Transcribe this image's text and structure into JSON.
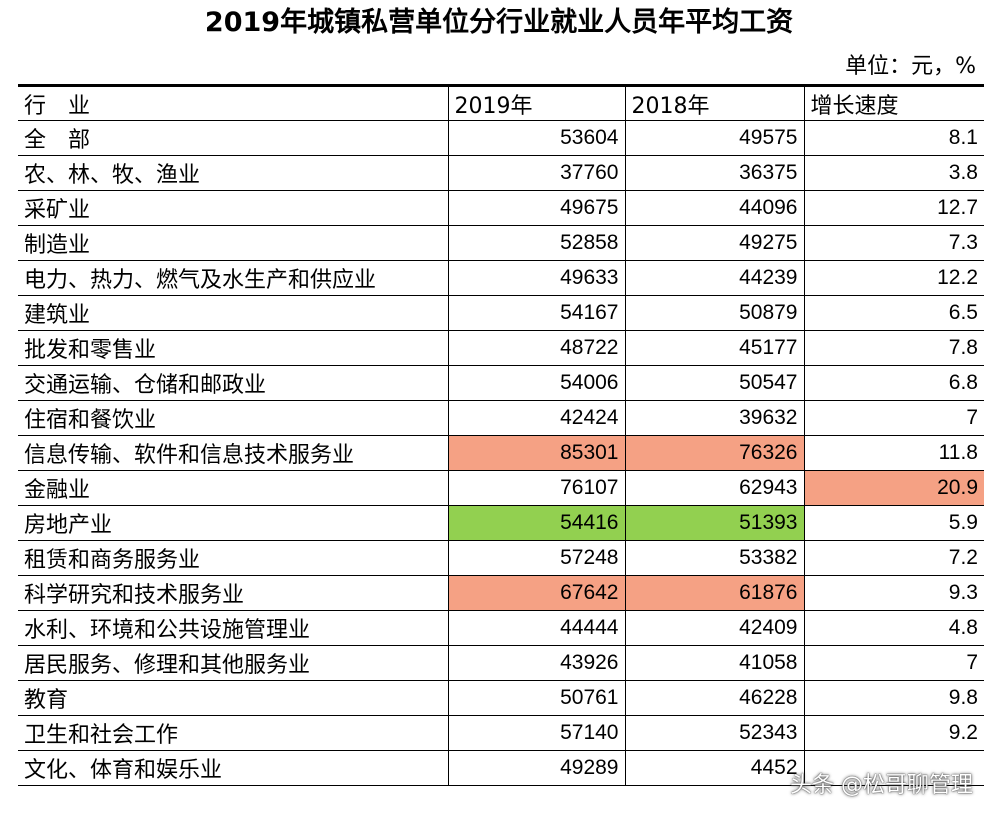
{
  "title": "2019年城镇私营单位分行业就业人员年平均工资",
  "unit": "单位：元，%",
  "headers": [
    "行　业",
    "2019年",
    "2018年",
    "增长速度"
  ],
  "rows": [
    {
      "name": "全　部",
      "y2019": "53604",
      "y2018": "49575",
      "growth": "8.1"
    },
    {
      "name": "农、林、牧、渔业",
      "y2019": "37760",
      "y2018": "36375",
      "growth": "3.8"
    },
    {
      "name": "采矿业",
      "y2019": "49675",
      "y2018": "44096",
      "growth": "12.7"
    },
    {
      "name": "制造业",
      "y2019": "52858",
      "y2018": "49275",
      "growth": "7.3"
    },
    {
      "name": "电力、热力、燃气及水生产和供应业",
      "y2019": "49633",
      "y2018": "44239",
      "growth": "12.2"
    },
    {
      "name": "建筑业",
      "y2019": "54167",
      "y2018": "50879",
      "growth": "6.5"
    },
    {
      "name": "批发和零售业",
      "y2019": "48722",
      "y2018": "45177",
      "growth": "7.8"
    },
    {
      "name": "交通运输、仓储和邮政业",
      "y2019": "54006",
      "y2018": "50547",
      "growth": "6.8"
    },
    {
      "name": "住宿和餐饮业",
      "y2019": "42424",
      "y2018": "39632",
      "growth": "7"
    },
    {
      "name": "信息传输、软件和信息技术服务业",
      "y2019": "85301",
      "y2018": "76326",
      "growth": "11.8"
    },
    {
      "name": "金融业",
      "y2019": "76107",
      "y2018": "62943",
      "growth": "20.9"
    },
    {
      "name": "房地产业",
      "y2019": "54416",
      "y2018": "51393",
      "growth": "5.9"
    },
    {
      "name": "租赁和商务服务业",
      "y2019": "57248",
      "y2018": "53382",
      "growth": "7.2"
    },
    {
      "name": "科学研究和技术服务业",
      "y2019": "67642",
      "y2018": "61876",
      "growth": "9.3"
    },
    {
      "name": "水利、环境和公共设施管理业",
      "y2019": "44444",
      "y2018": "42409",
      "growth": "4.8"
    },
    {
      "name": "居民服务、修理和其他服务业",
      "y2019": "43926",
      "y2018": "41058",
      "growth": "7"
    },
    {
      "name": "教育",
      "y2019": "50761",
      "y2018": "46228",
      "growth": "9.8"
    },
    {
      "name": "卫生和社会工作",
      "y2019": "57140",
      "y2018": "52343",
      "growth": "9.2"
    },
    {
      "name": "文化、体育和娱乐业",
      "y2019": "49289",
      "y2018": "4452",
      "growth": ""
    }
  ],
  "highlight_colors": {
    "red": "#f5a184",
    "green": "#92d050"
  },
  "watermark": "头条 @松哥聊管理"
}
